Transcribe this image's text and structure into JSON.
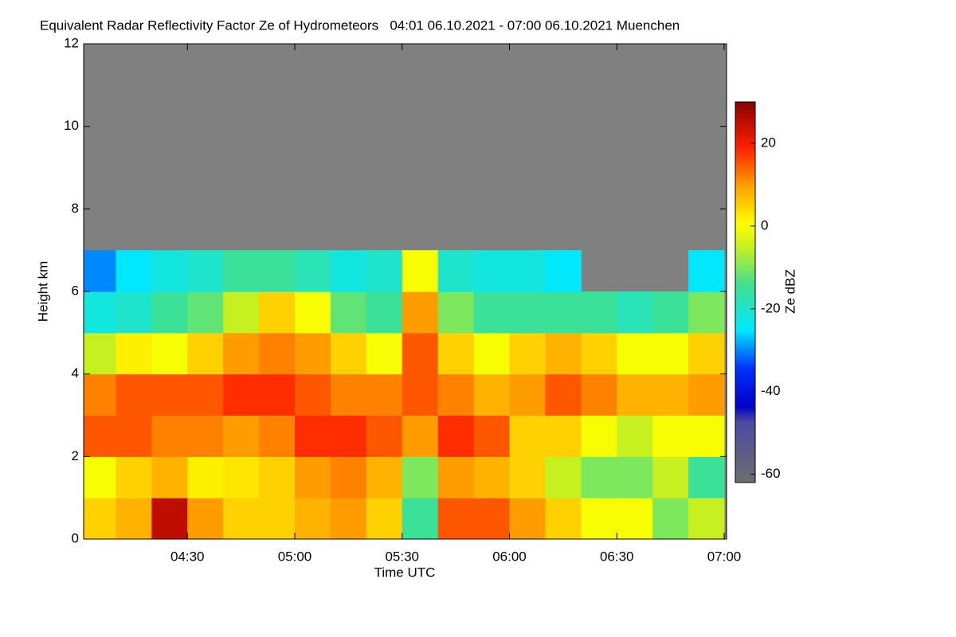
{
  "chart_data": {
    "type": "heatmap",
    "title": "Equivalent Radar Reflectivity Factor Ze of Hydrometeors   04:01 06.10.2021 - 07:00 06.10.2021 Muenchen",
    "xlabel": "Time UTC",
    "ylabel": "Height km",
    "colorbar_label": "Ze dBZ",
    "xlim": [
      1,
      180
    ],
    "xticks": [
      {
        "value": 30,
        "label": "04:30"
      },
      {
        "value": 60,
        "label": "05:00"
      },
      {
        "value": 90,
        "label": "05:30"
      },
      {
        "value": 120,
        "label": "06:00"
      },
      {
        "value": 150,
        "label": "06:30"
      },
      {
        "value": 180,
        "label": "07:00"
      }
    ],
    "ylim": [
      0,
      12
    ],
    "yticks": [
      0,
      2,
      4,
      6,
      8,
      10,
      12
    ],
    "clim": [
      -62,
      30
    ],
    "cticks": [
      -60,
      -40,
      -20,
      0,
      20
    ],
    "x_bins": [
      1,
      10,
      20,
      30,
      40,
      50,
      60,
      70,
      80,
      90,
      100,
      110,
      120,
      130,
      140,
      150,
      160,
      170,
      180
    ],
    "y_bins": [
      0,
      1,
      2,
      3,
      4,
      5,
      6,
      7,
      8,
      9,
      10,
      11,
      12
    ],
    "z": [
      [
        5,
        8,
        25,
        10,
        5,
        5,
        8,
        10,
        5,
        -15,
        15,
        15,
        10,
        5,
        0,
        0,
        -10,
        -5
      ],
      [
        0,
        5,
        8,
        2,
        3,
        5,
        10,
        12,
        8,
        -10,
        10,
        8,
        5,
        -5,
        -10,
        -10,
        -5,
        -15
      ],
      [
        15,
        15,
        12,
        12,
        10,
        12,
        18,
        18,
        15,
        10,
        18,
        15,
        5,
        5,
        0,
        -5,
        0,
        0
      ],
      [
        12,
        15,
        15,
        15,
        18,
        18,
        15,
        12,
        12,
        15,
        12,
        8,
        10,
        15,
        12,
        8,
        8,
        10
      ],
      [
        -5,
        2,
        0,
        5,
        10,
        12,
        10,
        5,
        0,
        15,
        5,
        0,
        5,
        8,
        5,
        0,
        0,
        5
      ],
      [
        -22,
        -20,
        -15,
        -12,
        -5,
        5,
        0,
        -12,
        -15,
        10,
        -10,
        -15,
        -15,
        -15,
        -15,
        -18,
        -15,
        -10
      ],
      [
        -30,
        -25,
        -22,
        -20,
        -15,
        -15,
        -18,
        -22,
        -20,
        0,
        -20,
        -22,
        -22,
        -25,
        null,
        null,
        null,
        -25
      ],
      [
        null,
        null,
        null,
        null,
        null,
        null,
        null,
        null,
        null,
        null,
        null,
        null,
        null,
        null,
        null,
        null,
        null,
        null
      ],
      [
        null,
        null,
        null,
        null,
        null,
        null,
        null,
        null,
        null,
        null,
        null,
        null,
        null,
        null,
        null,
        null,
        null,
        null
      ],
      [
        null,
        null,
        null,
        null,
        null,
        null,
        null,
        null,
        null,
        null,
        null,
        null,
        null,
        null,
        null,
        null,
        null,
        null
      ],
      [
        null,
        null,
        null,
        null,
        null,
        null,
        null,
        null,
        null,
        null,
        null,
        null,
        null,
        null,
        null,
        null,
        null,
        null
      ],
      [
        null,
        null,
        null,
        null,
        null,
        null,
        null,
        null,
        null,
        null,
        null,
        null,
        null,
        null,
        null,
        null,
        null,
        null
      ]
    ]
  }
}
